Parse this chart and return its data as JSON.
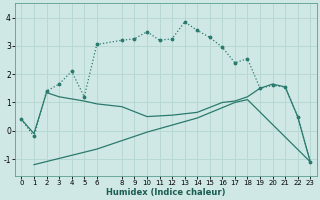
{
  "xlabel": "Humidex (Indice chaleur)",
  "bg_color": "#cfe8e5",
  "line_color": "#2a7a6e",
  "grid_color": "#b8d8d4",
  "xlim": [
    -0.5,
    23.5
  ],
  "ylim": [
    -1.6,
    4.5
  ],
  "xticks": [
    0,
    1,
    2,
    3,
    4,
    5,
    6,
    8,
    9,
    10,
    11,
    12,
    13,
    14,
    15,
    16,
    17,
    18,
    19,
    20,
    21,
    22,
    23
  ],
  "yticks": [
    -1,
    0,
    1,
    2,
    3,
    4
  ],
  "line1_x": [
    0,
    1,
    2,
    3,
    4,
    5,
    6,
    8,
    9,
    10,
    11,
    12,
    13,
    14,
    15,
    16,
    17,
    18,
    19,
    20,
    21,
    22,
    23
  ],
  "line1_y": [
    0.4,
    -0.2,
    1.4,
    1.65,
    2.1,
    1.2,
    3.05,
    3.2,
    3.25,
    3.5,
    3.2,
    3.25,
    3.85,
    3.55,
    3.3,
    2.95,
    2.4,
    2.55,
    1.5,
    1.6,
    1.55,
    0.5,
    -1.1
  ],
  "line2_x": [
    0,
    1,
    2,
    3,
    5,
    6,
    8,
    10,
    12,
    14,
    16,
    17,
    18,
    19,
    20,
    21,
    22,
    23
  ],
  "line2_y": [
    0.4,
    -0.1,
    1.35,
    1.2,
    1.05,
    0.95,
    0.85,
    0.5,
    0.55,
    0.65,
    1.0,
    1.05,
    1.2,
    1.5,
    1.65,
    1.55,
    0.5,
    -1.1
  ],
  "line3_x": [
    1,
    6,
    10,
    14,
    17,
    18,
    23
  ],
  "line3_y": [
    -1.2,
    -0.65,
    -0.05,
    0.45,
    1.0,
    1.1,
    -1.1
  ]
}
